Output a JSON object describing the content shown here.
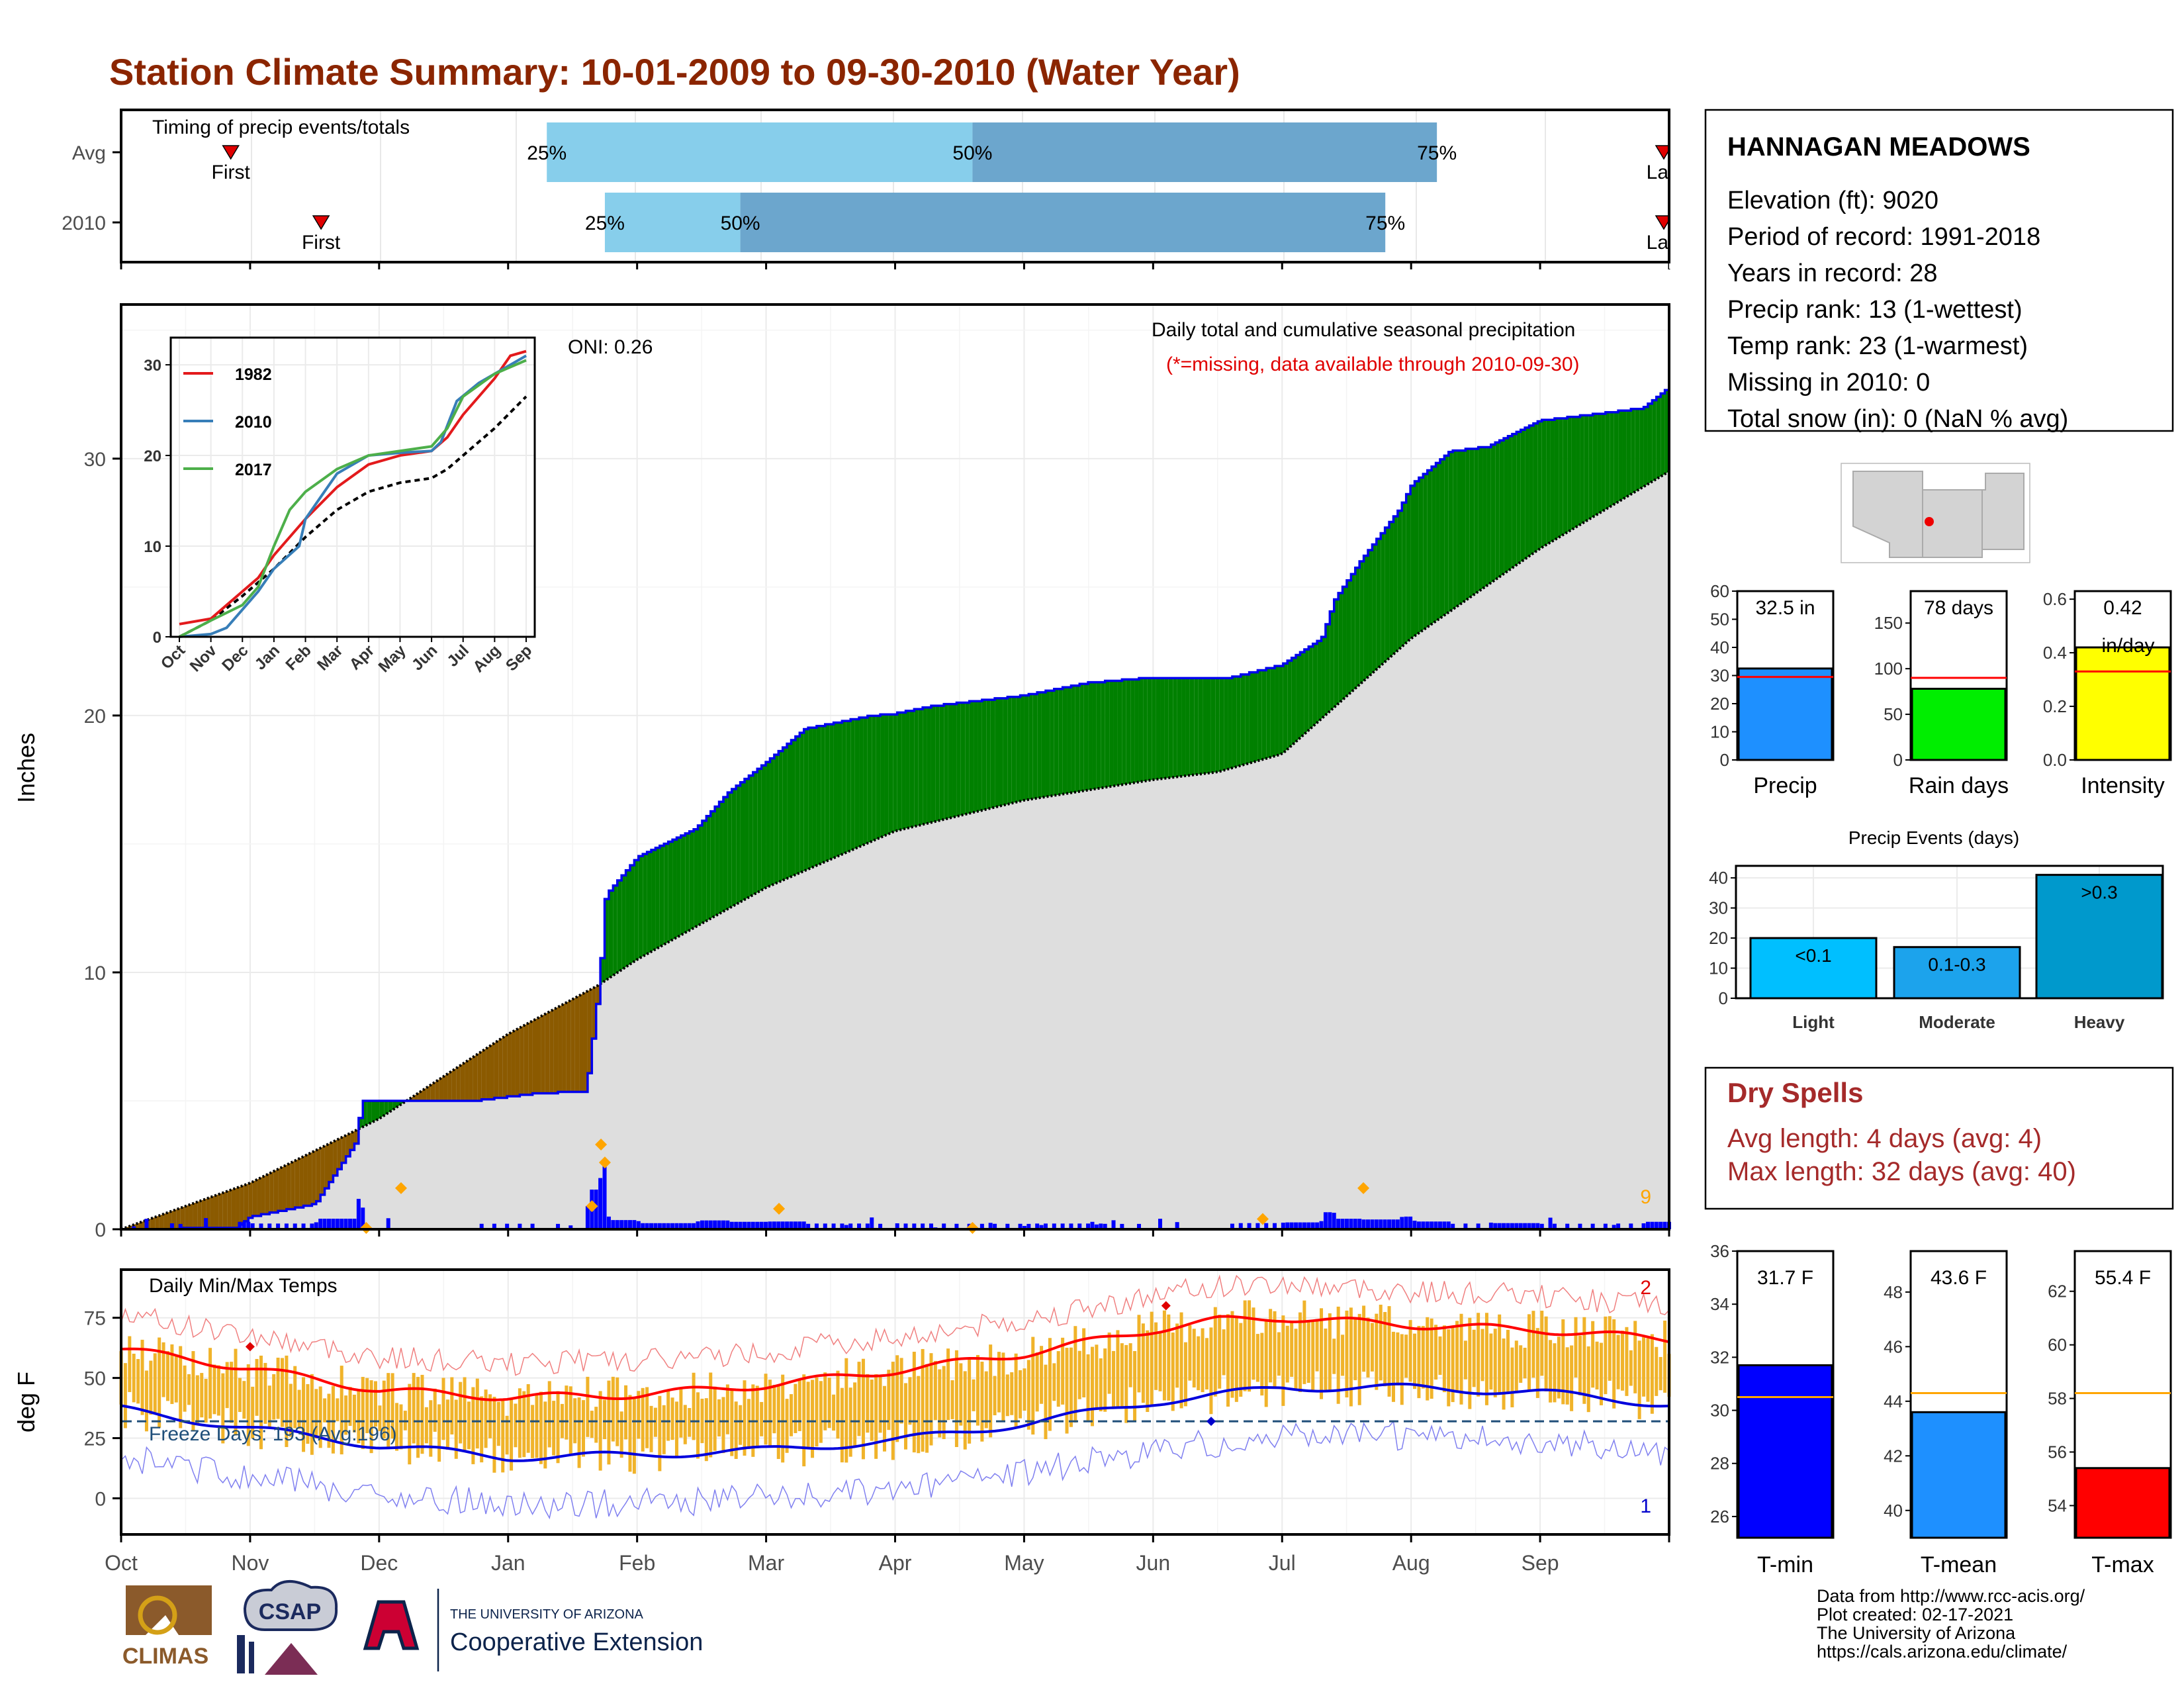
{
  "title": "Station Climate Summary: 10-01-2009 to 09-30-2010 (Water Year)",
  "timing": {
    "title": "Timing of precip events/totals",
    "rows": [
      {
        "label": "Avg",
        "first_label": "First",
        "last_label": "Last",
        "p25": "25%",
        "p50": "50%",
        "p75": "75%",
        "first_month": 0.85,
        "p25_month": 3.3,
        "p50_month": 6.6,
        "p75_month": 10.2,
        "last_month": 12.0
      },
      {
        "label": "2010",
        "first_label": "First",
        "last_label": "Last",
        "p25": "25%",
        "p50": "50%",
        "p75": "75%",
        "first_month": 1.55,
        "p25_month": 3.75,
        "p50_month": 4.8,
        "p75_month": 9.8,
        "last_month": 12.0
      }
    ]
  },
  "precip_panel": {
    "ylabel": "Inches",
    "title_line1": "Daily total and cumulative seasonal precipitation",
    "title_line2": "(*=missing, data available through 2010-09-30)",
    "oni": "ONI: 0.26",
    "count": "9",
    "yticks": [
      "0",
      "10",
      "20",
      "30"
    ]
  },
  "inset": {
    "yticks": [
      "0",
      "10",
      "20",
      "30"
    ],
    "months": [
      "Oct",
      "Nov",
      "Dec",
      "Jan",
      "Feb",
      "Mar",
      "Apr",
      "May",
      "Jun",
      "Jul",
      "Aug",
      "Sep"
    ],
    "legend": [
      {
        "name": "1982",
        "color": "#e31a1c"
      },
      {
        "name": "2010",
        "color": "#377eb8"
      },
      {
        "name": "2017",
        "color": "#4daf4a"
      }
    ]
  },
  "temp_panel": {
    "ylabel": "deg F",
    "title": "Daily Min/Max Temps",
    "freeze": "Freeze Days: 193 (Avg:196)",
    "count_top": "2",
    "count_bottom": "1",
    "yticks": [
      "0",
      "25",
      "50",
      "75"
    ]
  },
  "months": [
    "Oct",
    "Nov",
    "Dec",
    "Jan",
    "Feb",
    "Mar",
    "Apr",
    "May",
    "Jun",
    "Jul",
    "Aug",
    "Sep"
  ],
  "station": {
    "name": "HANNAGAN MEADOWS",
    "lines": [
      "Elevation (ft): 9020",
      "Period of record: 1991-2018",
      "Years in record: 28",
      "Precip rank: 13 (1-wettest)",
      "Temp rank: 23 (1-warmest)",
      "Missing in 2010: 0",
      "Total snow (in): 0 (NaN % avg)"
    ]
  },
  "small_bars": [
    {
      "label": "Precip",
      "value_text": "32.5 in",
      "value": 32.5,
      "avg": 29.5,
      "ymax": 60,
      "ticks": [
        "0",
        "10",
        "20",
        "30",
        "40",
        "50",
        "60"
      ],
      "color": "#1e90ff"
    },
    {
      "label": "Rain days",
      "value_text": "78 days",
      "value": 78,
      "avg": 90,
      "ymax": 185,
      "ticks": [
        "0",
        "50",
        "100",
        "150"
      ],
      "color": "#00ee00"
    },
    {
      "label": "Intensity",
      "value_text": "0.42",
      "value_text2": "in/day",
      "value": 0.42,
      "avg": 0.33,
      "ymax": 0.63,
      "ticks": [
        "0.0",
        "0.2",
        "0.4",
        "0.6"
      ],
      "color": "#ffff00"
    }
  ],
  "events": {
    "title": "Precip Events (days)",
    "yticks": [
      "0",
      "10",
      "20",
      "30",
      "40"
    ],
    "bars": [
      {
        "label": "Light",
        "inner": "<0.1",
        "value": 20,
        "color": "#00bfff"
      },
      {
        "label": "Moderate",
        "inner": "0.1-0.3",
        "value": 17,
        "color": "#1ca3ec"
      },
      {
        "label": "Heavy",
        "inner": ">0.3",
        "value": 41,
        "color": "#0099cc"
      }
    ]
  },
  "dry_spells": {
    "title": "Dry Spells",
    "line1": "Avg length: 4 days (avg: 4)",
    "line2": "Max length: 32 days (avg: 40)"
  },
  "temp_bars": [
    {
      "label": "T-min",
      "value_text": "31.7 F",
      "value": 31.7,
      "avg": 30.5,
      "ymin": 25.2,
      "ymax": 36,
      "ticks": [
        "26",
        "28",
        "30",
        "32",
        "34",
        "36"
      ],
      "color": "#0000ff"
    },
    {
      "label": "T-mean",
      "value_text": "43.6 F",
      "value": 43.6,
      "avg": 44.3,
      "ymin": 39,
      "ymax": 49.5,
      "ticks": [
        "40",
        "42",
        "44",
        "46",
        "48"
      ],
      "color": "#1e90ff"
    },
    {
      "label": "T-max",
      "value_text": "55.4 F",
      "value": 55.4,
      "avg": 58.2,
      "ymin": 52.8,
      "ymax": 63.5,
      "ticks": [
        "54",
        "56",
        "58",
        "60",
        "62"
      ],
      "color": "#ff0000"
    }
  ],
  "credits": [
    "Data from http://www.rcc-acis.org/",
    "Plot created: 02-17-2021",
    "The University of Arizona",
    "https://cals.arizona.edu/climate/"
  ],
  "logos": {
    "climas": "CLIMAS",
    "csap": "CSAP",
    "ua_top": "THE UNIVERSITY OF ARIZONA",
    "ua_bottom": "Cooperative Extension"
  },
  "chart_data": [
    {
      "type": "area",
      "title": "Daily total and cumulative seasonal precipitation",
      "ylabel": "Inches",
      "ylim": [
        0,
        36
      ],
      "x_months": [
        "Oct",
        "Nov",
        "Dec",
        "Jan",
        "Feb",
        "Mar",
        "Apr",
        "May",
        "Jun",
        "Jul",
        "Aug",
        "Sep"
      ],
      "series": [
        {
          "name": "2010",
          "x": [
            0,
            0.9,
            1.0,
            1.5,
            1.83,
            1.85,
            2.0,
            2.7,
            3.2,
            3.6,
            3.7,
            3.75,
            4.0,
            4.45,
            4.7,
            5.0,
            5.3,
            5.5,
            5.8,
            6.0,
            6.3,
            7.0,
            7.5,
            8.0,
            8.6,
            9.0,
            9.3,
            9.4,
            9.6,
            9.9,
            10.0,
            10.3,
            10.6,
            11.0,
            11.5,
            11.8,
            12.0
          ],
          "values": [
            0,
            0.1,
            0.5,
            1.0,
            3.5,
            5.0,
            5.0,
            5.0,
            5.3,
            5.4,
            9.5,
            13.0,
            14.5,
            15.6,
            17.0,
            18.2,
            19.5,
            19.7,
            20.0,
            20.1,
            20.4,
            20.8,
            21.3,
            21.5,
            21.5,
            22.0,
            23.0,
            24.5,
            26.0,
            28.0,
            29.0,
            30.3,
            30.5,
            31.5,
            31.8,
            32.0,
            32.8
          ]
        },
        {
          "name": "Avg",
          "x": [
            0,
            1,
            2,
            3,
            3.7,
            4,
            5,
            6,
            7,
            8,
            8.5,
            9,
            10,
            11,
            12
          ],
          "values": [
            0,
            1.8,
            4.3,
            7.6,
            9.5,
            10.5,
            13.3,
            15.5,
            16.7,
            17.5,
            17.8,
            18.5,
            23.0,
            26.5,
            29.5
          ]
        }
      ]
    },
    {
      "type": "line",
      "title": "Daily Min/Max Temps",
      "ylabel": "deg F",
      "ylim": [
        -15,
        95
      ],
      "x_months": [
        "Oct",
        "Nov",
        "Dec",
        "Jan",
        "Feb",
        "Mar",
        "Apr",
        "May",
        "Jun",
        "Jul",
        "Aug",
        "Sep"
      ],
      "series": [
        {
          "name": "Avg max",
          "x": [
            0,
            1,
            2,
            3,
            4,
            5,
            6,
            7,
            8,
            8.5,
            9,
            10,
            11,
            12
          ],
          "values": [
            62,
            54,
            45,
            42,
            43,
            47,
            53,
            60,
            70,
            74,
            75,
            72,
            70,
            66
          ]
        },
        {
          "name": "Avg min",
          "x": [
            0,
            1,
            2,
            3,
            4,
            5,
            6,
            7,
            8,
            8.5,
            9,
            10,
            11,
            12
          ],
          "values": [
            37,
            29,
            22,
            17,
            18,
            20,
            24,
            31,
            40,
            43,
            46,
            46,
            44,
            39
          ]
        },
        {
          "name": "Freeze",
          "x": [
            0,
            12
          ],
          "values": [
            32,
            32
          ]
        }
      ]
    }
  ]
}
